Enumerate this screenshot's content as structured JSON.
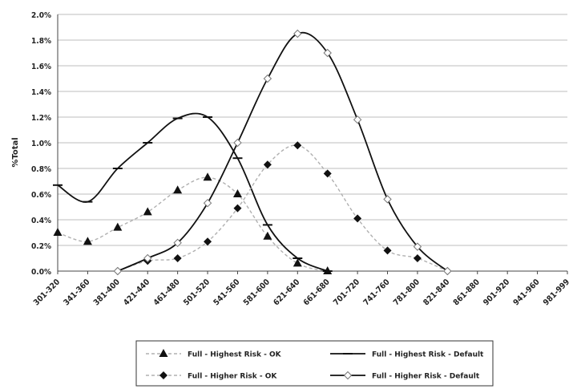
{
  "chart_data": {
    "type": "line",
    "ylabel": "%Total",
    "xlabel": "",
    "ylim": [
      0,
      2.0
    ],
    "yticks": [
      "0.0%",
      "0.2%",
      "0.4%",
      "0.6%",
      "0.8%",
      "1.0%",
      "1.2%",
      "1.4%",
      "1.6%",
      "1.8%",
      "2.0%"
    ],
    "categories": [
      "301-320",
      "341-360",
      "381-400",
      "421-440",
      "461-480",
      "501-520",
      "541-560",
      "581-600",
      "621-640",
      "661-680",
      "701-720",
      "741-760",
      "781-800",
      "821-840",
      "861-880",
      "901-920",
      "941-960",
      "981-999"
    ],
    "grid": "horizontal",
    "legend_position": "bottom",
    "series": [
      {
        "name": "Full - Highest Risk - OK",
        "marker": "triangle",
        "line": "dashed",
        "x": [
          0,
          1,
          2,
          3,
          4,
          5,
          6,
          7,
          8,
          9
        ],
        "values": [
          0.3,
          0.23,
          0.34,
          0.46,
          0.63,
          0.73,
          0.6,
          0.27,
          0.06,
          0.0
        ]
      },
      {
        "name": "Full - Highest Risk - Default",
        "marker": "dash",
        "line": "solid",
        "x": [
          0,
          1,
          2,
          3,
          4,
          5,
          6,
          7,
          8,
          9
        ],
        "values": [
          0.67,
          0.54,
          0.8,
          1.0,
          1.19,
          1.2,
          0.88,
          0.36,
          0.1,
          0.0
        ]
      },
      {
        "name": "Full - Higher Risk - OK",
        "marker": "diamond",
        "line": "dashed",
        "x": [
          2,
          3,
          4,
          5,
          6,
          7,
          8,
          9,
          10,
          11,
          12,
          13
        ],
        "values": [
          0.0,
          0.08,
          0.1,
          0.23,
          0.49,
          0.83,
          0.98,
          0.76,
          0.41,
          0.16,
          0.1,
          0.0
        ]
      },
      {
        "name": "Full - Higher Risk - Default",
        "marker": "diamond-open",
        "line": "solid",
        "x": [
          2,
          3,
          4,
          5,
          6,
          7,
          8,
          9,
          10,
          11,
          12,
          13
        ],
        "values": [
          0.0,
          0.1,
          0.22,
          0.53,
          1.0,
          1.5,
          1.85,
          1.7,
          1.18,
          0.56,
          0.19,
          0.0
        ]
      }
    ]
  }
}
